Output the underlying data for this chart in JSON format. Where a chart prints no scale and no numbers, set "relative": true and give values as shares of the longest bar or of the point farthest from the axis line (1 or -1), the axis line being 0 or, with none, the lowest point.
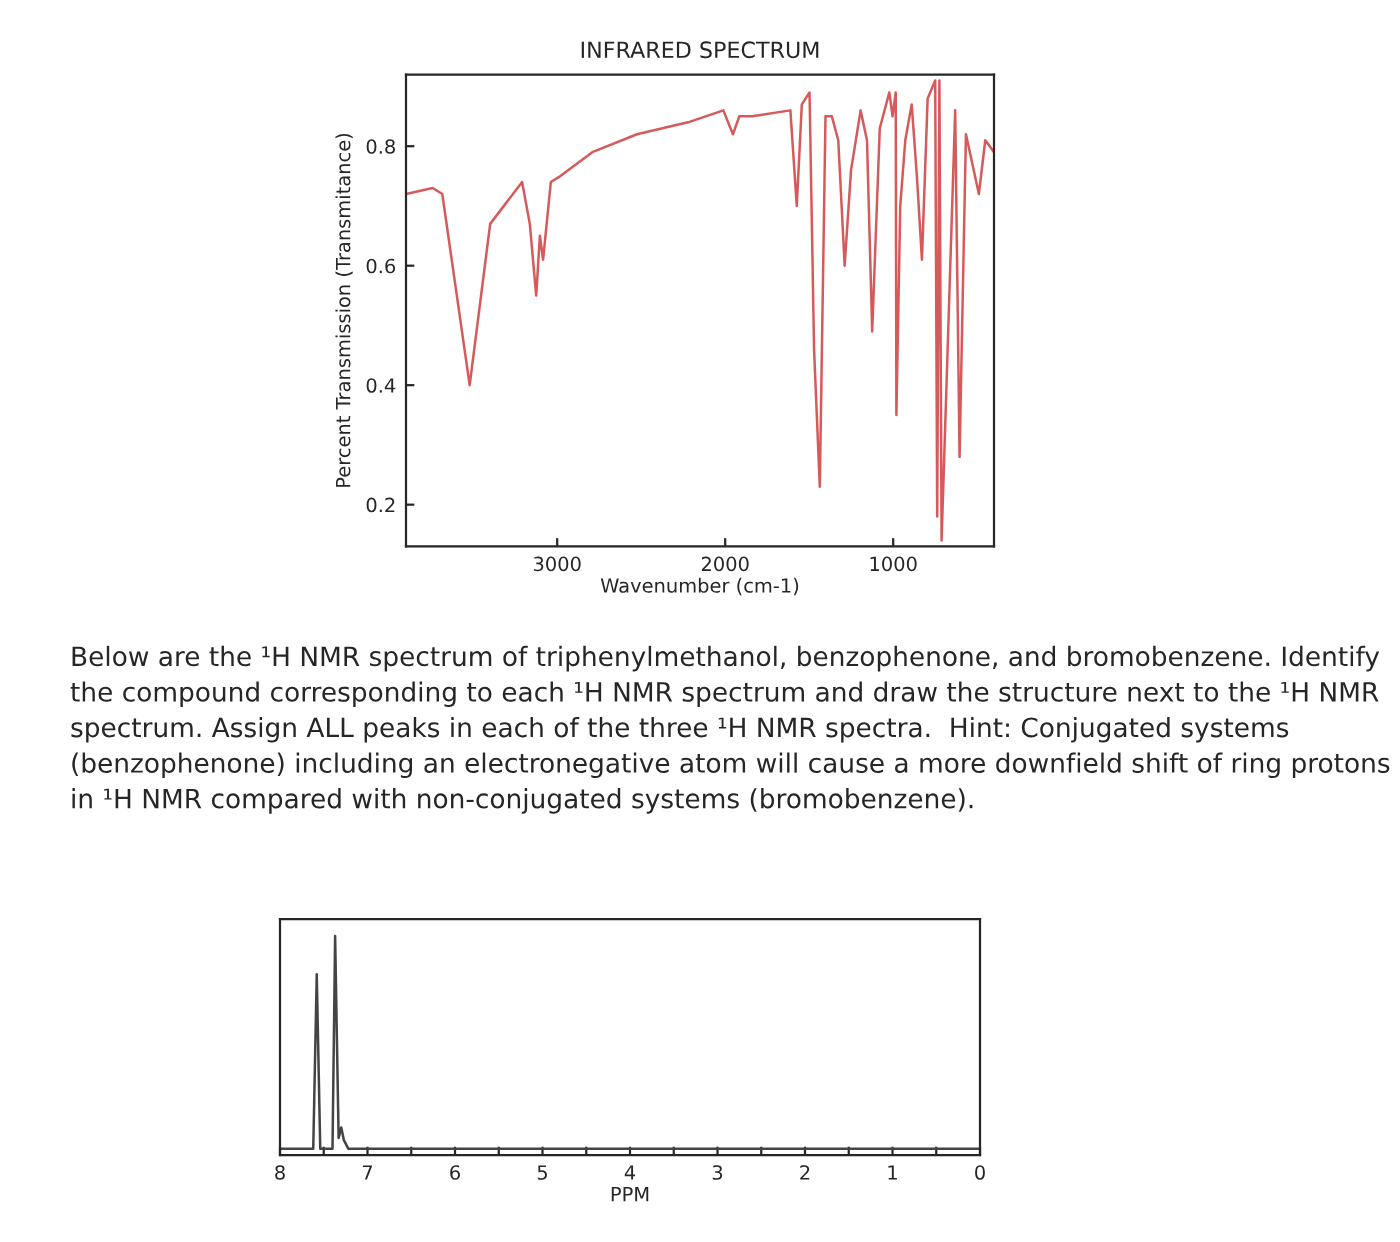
{
  "chart_data": [
    {
      "type": "line",
      "title": "INFRARED SPECTRUM",
      "xlabel": "Wavenumber (cm-1)",
      "ylabel": "Percent Transmission (Transmitance)",
      "xlim": [
        3900,
        400
      ],
      "ylim": [
        0.13,
        0.92
      ],
      "xticks": [
        3000,
        2000,
        1000
      ],
      "yticks": [
        0.2,
        0.4,
        0.6,
        0.8
      ],
      "grid": false,
      "marker": "none",
      "line_style": "solid",
      "series": [
        {
          "color": "#d65a5a",
          "x": [
            3900,
            3741,
            3684,
            3521,
            3399,
            3209,
            3163,
            3125,
            3103,
            3084,
            3038,
            2981,
            2791,
            2525,
            2221,
            2011,
            1954,
            1916,
            1840,
            1612,
            1574,
            1544,
            1498,
            1471,
            1437,
            1403,
            1365,
            1327,
            1289,
            1251,
            1194,
            1156,
            1125,
            1080,
            1023,
            1004,
            985,
            981,
            958,
            928,
            890,
            859,
            829,
            795,
            750,
            738,
            725,
            712,
            631,
            605,
            567,
            490,
            452,
            400
          ],
          "values": [
            0.72,
            0.73,
            0.72,
            0.4,
            0.67,
            0.74,
            0.67,
            0.55,
            0.65,
            0.61,
            0.74,
            0.75,
            0.79,
            0.82,
            0.84,
            0.86,
            0.82,
            0.85,
            0.85,
            0.86,
            0.7,
            0.87,
            0.89,
            0.46,
            0.23,
            0.85,
            0.85,
            0.81,
            0.6,
            0.76,
            0.86,
            0.81,
            0.49,
            0.83,
            0.89,
            0.85,
            0.89,
            0.35,
            0.7,
            0.81,
            0.87,
            0.75,
            0.61,
            0.88,
            0.91,
            0.18,
            0.91,
            0.14,
            0.86,
            0.28,
            0.82,
            0.72,
            0.81,
            0.79
          ]
        }
      ]
    },
    {
      "type": "line",
      "xlabel": "PPM",
      "relative": true,
      "xlim": [
        8,
        0
      ],
      "xticks": [
        8,
        {
          "value": 7.5,
          "label": null
        },
        7,
        {
          "value": 6.5,
          "label": null
        },
        6,
        {
          "value": 5.5,
          "label": null
        },
        5,
        {
          "value": 4.5,
          "label": null
        },
        4,
        {
          "value": 3.5,
          "label": null
        },
        3,
        {
          "value": 2.5,
          "label": null
        },
        2,
        {
          "value": 1.5,
          "label": null
        },
        1,
        {
          "value": 0.5,
          "label": null
        },
        0
      ],
      "grid": false,
      "marker": "none",
      "line_style": "solid",
      "annotations": [
        "Below are the ¹H NMR spectrum of triphenylmethanol, benzophenone, and bromobenzene. Identify the compound corresponding to each ¹H NMR spectrum and draw the structure next to the ¹H NMR spectrum. Assign ALL peaks in each of the three ¹H NMR spectra.  Hint: Conjugated systems (benzophenone) including an electronegative atom will cause a more downfield shift of ring protons in ¹H NMR compared with non-conjugated systems (bromobenzene)."
      ],
      "series": [
        {
          "color": "#444444",
          "x": [
            8,
            7.62,
            7.58,
            7.54,
            7.4,
            7.37,
            7.33,
            7.3,
            7.27,
            7.22,
            0
          ],
          "values": [
            0,
            0,
            0.82,
            0,
            0,
            1.0,
            0.05,
            0.1,
            0.04,
            0,
            0
          ]
        }
      ]
    }
  ]
}
